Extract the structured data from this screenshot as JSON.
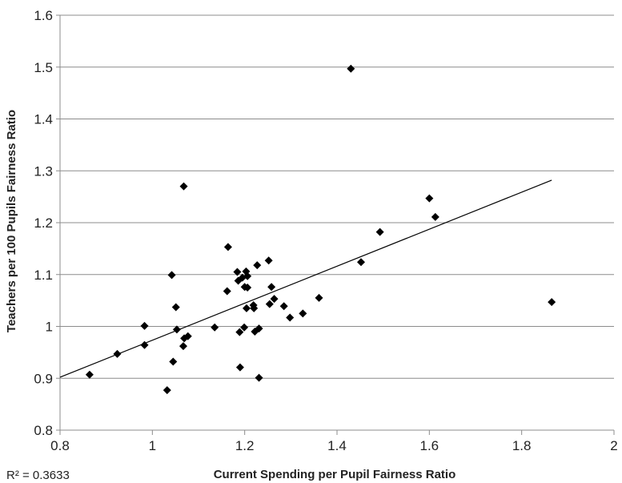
{
  "chart_data": {
    "type": "scatter",
    "title": "",
    "xlabel": "Current Spending per Pupil Fairness Ratio",
    "ylabel": "Teachers per 100 Pupils Fairness Ratio",
    "xlim": [
      0.8,
      2
    ],
    "ylim": [
      0.8,
      1.6
    ],
    "x_ticks": [
      "0.8",
      "1",
      "1.2",
      "1.4",
      "1.6",
      "1.8",
      "2"
    ],
    "y_ticks": [
      "0.8",
      "0.9",
      "1",
      "1.1",
      "1.2",
      "1.3",
      "1.4",
      "1.5",
      "1.6"
    ],
    "grid": "horizontal",
    "legend": "none",
    "marker_color": "#000000",
    "trendline": {
      "type": "linear",
      "x": [
        0.8,
        1.865
      ],
      "y": [
        0.902,
        1.282
      ],
      "r_squared_label": "R² = 0.3633"
    },
    "points": [
      {
        "x": 0.864,
        "y": 0.907
      },
      {
        "x": 0.924,
        "y": 0.947
      },
      {
        "x": 0.983,
        "y": 1.001
      },
      {
        "x": 0.983,
        "y": 0.964
      },
      {
        "x": 1.032,
        "y": 0.877
      },
      {
        "x": 1.042,
        "y": 1.099
      },
      {
        "x": 1.045,
        "y": 0.932
      },
      {
        "x": 1.051,
        "y": 1.037
      },
      {
        "x": 1.053,
        "y": 0.994
      },
      {
        "x": 1.067,
        "y": 0.962
      },
      {
        "x": 1.068,
        "y": 1.27
      },
      {
        "x": 1.069,
        "y": 0.977
      },
      {
        "x": 1.077,
        "y": 0.981
      },
      {
        "x": 1.135,
        "y": 0.998
      },
      {
        "x": 1.162,
        "y": 1.068
      },
      {
        "x": 1.164,
        "y": 1.153
      },
      {
        "x": 1.184,
        "y": 1.105
      },
      {
        "x": 1.186,
        "y": 1.088
      },
      {
        "x": 1.189,
        "y": 0.989
      },
      {
        "x": 1.19,
        "y": 0.921
      },
      {
        "x": 1.195,
        "y": 1.094
      },
      {
        "x": 1.199,
        "y": 0.998
      },
      {
        "x": 1.2,
        "y": 1.076
      },
      {
        "x": 1.203,
        "y": 1.106
      },
      {
        "x": 1.204,
        "y": 1.035
      },
      {
        "x": 1.206,
        "y": 1.097
      },
      {
        "x": 1.206,
        "y": 1.075
      },
      {
        "x": 1.219,
        "y": 1.041
      },
      {
        "x": 1.22,
        "y": 1.035
      },
      {
        "x": 1.222,
        "y": 0.99
      },
      {
        "x": 1.227,
        "y": 1.118
      },
      {
        "x": 1.231,
        "y": 0.996
      },
      {
        "x": 1.231,
        "y": 0.901
      },
      {
        "x": 1.252,
        "y": 1.127
      },
      {
        "x": 1.254,
        "y": 1.043
      },
      {
        "x": 1.258,
        "y": 1.076
      },
      {
        "x": 1.264,
        "y": 1.053
      },
      {
        "x": 1.285,
        "y": 1.039
      },
      {
        "x": 1.298,
        "y": 1.017
      },
      {
        "x": 1.326,
        "y": 1.025
      },
      {
        "x": 1.361,
        "y": 1.055
      },
      {
        "x": 1.43,
        "y": 1.497
      },
      {
        "x": 1.452,
        "y": 1.124
      },
      {
        "x": 1.493,
        "y": 1.182
      },
      {
        "x": 1.6,
        "y": 1.247
      },
      {
        "x": 1.613,
        "y": 1.211
      },
      {
        "x": 1.865,
        "y": 1.047
      }
    ]
  }
}
